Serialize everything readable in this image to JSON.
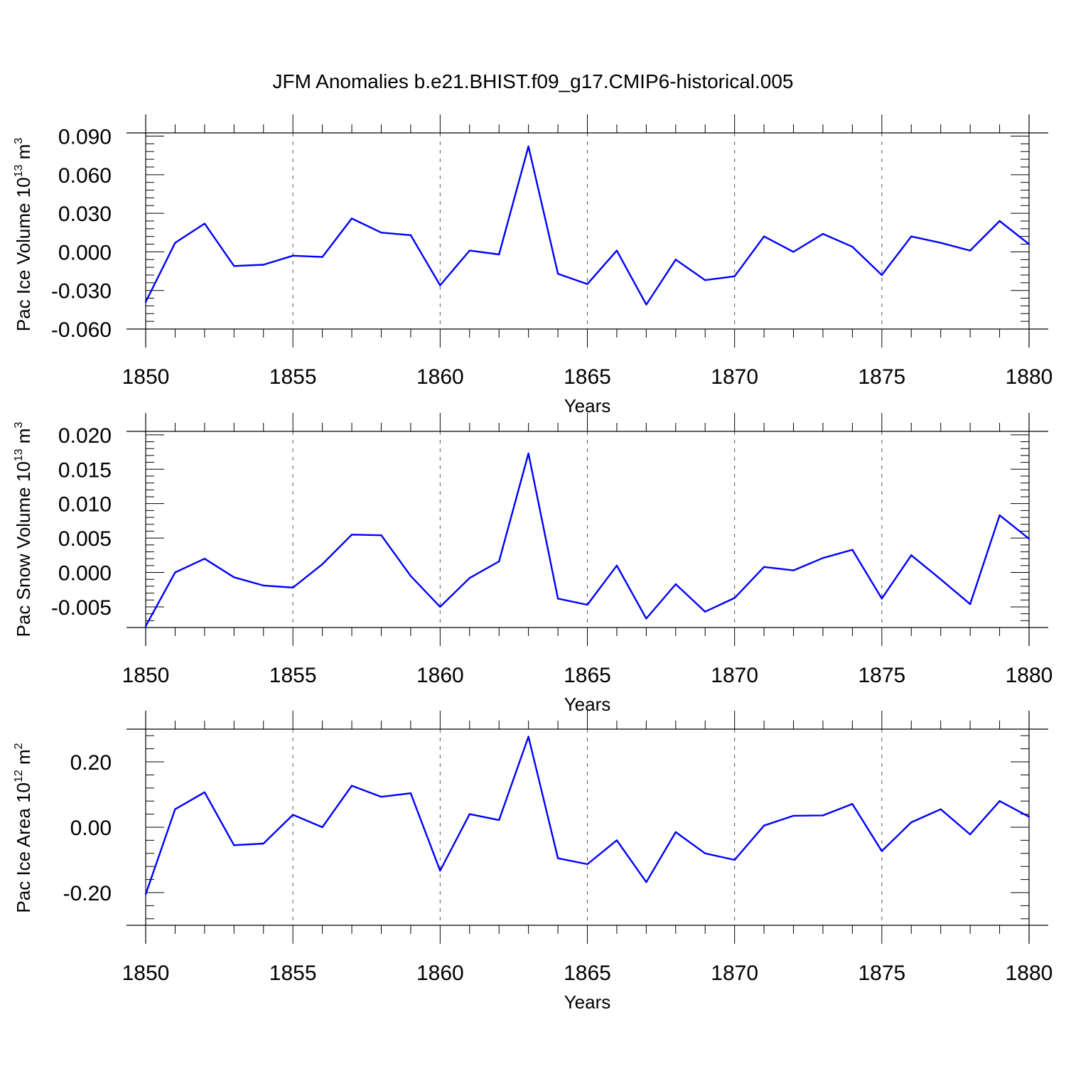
{
  "title": "JFM Anomalies b.e21.BHIST.f09_g17.CMIP6-historical.005",
  "line_color": "#0000ff",
  "chart_data": [
    {
      "type": "line",
      "ylabel": "Pac Ice Volume 10",
      "ylabel_exp": "13",
      "ylabel_unit": " m",
      "ylabel_unit_exp": "3",
      "xlabel": "Years",
      "xlim": [
        1850,
        1880
      ],
      "ylim": [
        -0.06,
        0.0925
      ],
      "yticks": [
        -0.06,
        -0.03,
        0.0,
        0.03,
        0.06,
        0.09
      ],
      "ytick_labels": [
        "-0.060",
        "-0.030",
        "0.000",
        "0.030",
        "0.060",
        "0.090"
      ],
      "xticks": [
        1850,
        1855,
        1860,
        1865,
        1870,
        1875,
        1880
      ],
      "xtick_labels": [
        "1850",
        "1855",
        "1860",
        "1865",
        "1870",
        "1875",
        "1880"
      ],
      "grid": "vertical dashed at major x ticks",
      "series": [
        {
          "x": [
            1850,
            1851,
            1852,
            1853,
            1854,
            1855,
            1856,
            1857,
            1858,
            1859,
            1860,
            1861,
            1862,
            1863,
            1864,
            1865,
            1866,
            1867,
            1868,
            1869,
            1870,
            1871,
            1872,
            1873,
            1874,
            1875,
            1876,
            1877,
            1878,
            1879,
            1880
          ],
          "values": [
            -0.039,
            0.007,
            0.022,
            -0.011,
            -0.01,
            -0.003,
            -0.004,
            0.026,
            0.015,
            0.013,
            -0.026,
            0.001,
            -0.002,
            0.082,
            -0.017,
            -0.025,
            0.001,
            -0.041,
            -0.006,
            -0.022,
            -0.019,
            0.012,
            0.0,
            0.014,
            0.004,
            -0.018,
            0.012,
            0.007,
            0.001,
            0.024,
            0.006
          ]
        }
      ]
    },
    {
      "type": "line",
      "ylabel": "Pac Snow Volume 10",
      "ylabel_exp": "13",
      "ylabel_unit": " m",
      "ylabel_unit_exp": "3",
      "xlabel": "Years",
      "xlim": [
        1850,
        1880
      ],
      "ylim": [
        -0.008,
        0.0205
      ],
      "yticks": [
        -0.005,
        0.0,
        0.005,
        0.01,
        0.015,
        0.02
      ],
      "ytick_labels": [
        "-0.005",
        "0.000",
        "0.005",
        "0.010",
        "0.015",
        "0.020"
      ],
      "xticks": [
        1850,
        1855,
        1860,
        1865,
        1870,
        1875,
        1880
      ],
      "xtick_labels": [
        "1850",
        "1855",
        "1860",
        "1865",
        "1870",
        "1875",
        "1880"
      ],
      "grid": "vertical dashed at major x ticks",
      "series": [
        {
          "x": [
            1850,
            1851,
            1852,
            1853,
            1854,
            1855,
            1856,
            1857,
            1858,
            1859,
            1860,
            1861,
            1862,
            1863,
            1864,
            1865,
            1866,
            1867,
            1868,
            1869,
            1870,
            1871,
            1872,
            1873,
            1874,
            1875,
            1876,
            1877,
            1878,
            1879,
            1880
          ],
          "values": [
            -0.0078,
            0.0,
            0.002,
            -0.0007,
            -0.0019,
            -0.0022,
            0.0012,
            0.0055,
            0.0054,
            -0.0005,
            -0.005,
            -0.0008,
            0.0016,
            0.0173,
            -0.0038,
            -0.0047,
            0.001,
            -0.0067,
            -0.0017,
            -0.0057,
            -0.0037,
            0.0008,
            0.0003,
            0.0021,
            0.0033,
            -0.0038,
            0.0025,
            -0.001,
            -0.0046,
            0.0083,
            0.0049
          ]
        }
      ]
    },
    {
      "type": "line",
      "ylabel": "Pac Ice Area 10",
      "ylabel_exp": "12",
      "ylabel_unit": " m",
      "ylabel_unit_exp": "2",
      "xlabel": "Years",
      "xlim": [
        1850,
        1880
      ],
      "ylim": [
        -0.3,
        0.3
      ],
      "yticks": [
        -0.2,
        0.0,
        0.2
      ],
      "ytick_labels": [
        "-0.20",
        "0.00",
        "0.20"
      ],
      "xticks": [
        1850,
        1855,
        1860,
        1865,
        1870,
        1875,
        1880
      ],
      "xtick_labels": [
        "1850",
        "1855",
        "1860",
        "1865",
        "1870",
        "1875",
        "1880"
      ],
      "grid": "vertical dashed at major x ticks",
      "series": [
        {
          "x": [
            1850,
            1851,
            1852,
            1853,
            1854,
            1855,
            1856,
            1857,
            1858,
            1859,
            1860,
            1861,
            1862,
            1863,
            1864,
            1865,
            1866,
            1867,
            1868,
            1869,
            1870,
            1871,
            1872,
            1873,
            1874,
            1875,
            1876,
            1877,
            1878,
            1879,
            1880
          ],
          "values": [
            -0.205,
            0.055,
            0.107,
            -0.055,
            -0.05,
            0.038,
            0.0,
            0.127,
            0.093,
            0.104,
            -0.133,
            0.04,
            0.022,
            0.277,
            -0.095,
            -0.113,
            -0.04,
            -0.168,
            -0.015,
            -0.08,
            -0.1,
            0.005,
            0.035,
            0.036,
            0.071,
            -0.073,
            0.015,
            0.055,
            -0.022,
            0.08,
            0.032
          ]
        }
      ]
    }
  ]
}
